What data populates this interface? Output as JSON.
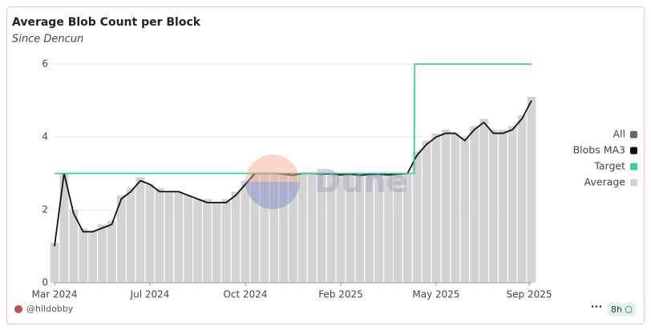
{
  "chart_data": {
    "type": "bar_line",
    "title": "Average Blob Count per Block",
    "subtitle": "Since Dencun",
    "watermark": "Dune",
    "author": "@hildobby",
    "age": "8h",
    "legend_toggle": {
      "name": "All",
      "color": "#666666"
    },
    "x": [
      0,
      2,
      4,
      6,
      8,
      10,
      12,
      14,
      16,
      18,
      20,
      22,
      24,
      26,
      28,
      30,
      32,
      34,
      36,
      38,
      40,
      42,
      44,
      46,
      48,
      50,
      52,
      54,
      56,
      58,
      60,
      62,
      64,
      66,
      68,
      70,
      72,
      74,
      76,
      78,
      80,
      82,
      84,
      86,
      88,
      90,
      92,
      94,
      96,
      98,
      100
    ],
    "xlim": [
      0,
      100
    ],
    "xticks": [
      {
        "value": 0,
        "label": "Mar 2024"
      },
      {
        "value": 20,
        "label": "Jul 2024"
      },
      {
        "value": 40,
        "label": "Oct 2024"
      },
      {
        "value": 60,
        "label": "Feb 2025"
      },
      {
        "value": 80,
        "label": "May 2025"
      },
      {
        "value": 99.5,
        "label": "Sep 2025"
      }
    ],
    "ylim": [
      0,
      6
    ],
    "yticks": [
      0,
      2,
      4,
      6
    ],
    "grid": true,
    "series": [
      {
        "name": "Blobs MA3",
        "color": "#111111",
        "kind": "line",
        "values": [
          1.0,
          3.0,
          1.9,
          1.4,
          1.4,
          1.5,
          1.6,
          2.3,
          2.5,
          2.8,
          2.7,
          2.5,
          2.5,
          2.5,
          2.4,
          2.3,
          2.2,
          2.2,
          2.2,
          2.4,
          2.7,
          3.0,
          3.0,
          3.0,
          2.98,
          2.95,
          3.0,
          3.0,
          2.98,
          2.99,
          2.96,
          2.98,
          2.95,
          2.97,
          2.98,
          2.96,
          2.98,
          3.0,
          3.5,
          3.8,
          4.0,
          4.1,
          4.1,
          3.9,
          4.2,
          4.4,
          4.1,
          4.1,
          4.2,
          4.5,
          5.0
        ]
      },
      {
        "name": "Target",
        "color": "#3ecf9e",
        "kind": "line",
        "x": [
          0,
          75.4,
          75.5,
          100
        ],
        "values": [
          3,
          3,
          6,
          6
        ]
      },
      {
        "name": "Average",
        "color": "#d3d3d3",
        "kind": "bar",
        "values": [
          1.1,
          3.0,
          2.0,
          1.5,
          1.4,
          1.6,
          1.7,
          2.4,
          2.6,
          2.9,
          2.7,
          2.6,
          2.5,
          2.5,
          2.4,
          2.3,
          2.3,
          2.2,
          2.3,
          2.5,
          2.8,
          3.0,
          3.0,
          3.0,
          3.0,
          2.96,
          3.0,
          3.0,
          3.0,
          3.0,
          2.97,
          2.99,
          2.96,
          2.98,
          2.99,
          2.97,
          2.99,
          3.0,
          3.6,
          3.9,
          4.1,
          4.2,
          4.1,
          4.0,
          4.3,
          4.5,
          4.2,
          4.2,
          4.3,
          4.6,
          5.1
        ]
      }
    ]
  }
}
